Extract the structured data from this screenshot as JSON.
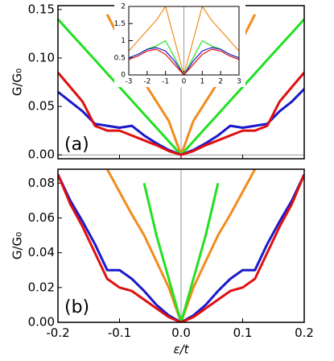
{
  "chart_data": [
    {
      "type": "line",
      "annotation": "(a)",
      "ylabel": "G/G₀",
      "x": [
        -0.2,
        -0.18,
        -0.16,
        -0.14,
        -0.12,
        -0.1,
        -0.08,
        -0.06,
        -0.04,
        -0.02,
        0,
        0.02,
        0.04,
        0.06,
        0.08,
        0.1,
        0.12,
        0.14,
        0.16,
        0.18,
        0.2
      ],
      "series": [
        {
          "color": "#f28c1c",
          "values": [
            null,
            null,
            null,
            null,
            0.145,
            0.12,
            0.095,
            0.075,
            0.055,
            0.035,
            0,
            0.035,
            0.055,
            0.075,
            0.095,
            0.12,
            0.145,
            null,
            null,
            null,
            null
          ]
        },
        {
          "color": "#22e022",
          "values": [
            0.14,
            0.126,
            0.112,
            0.098,
            0.084,
            0.07,
            0.056,
            0.042,
            0.028,
            0.014,
            0,
            0.014,
            0.028,
            0.042,
            0.056,
            0.07,
            0.084,
            0.098,
            0.112,
            0.126,
            0.14
          ]
        },
        {
          "color": "#1a1acc",
          "values": [
            0.065,
            0.055,
            0.045,
            0.032,
            0.03,
            0.028,
            0.03,
            0.02,
            0.012,
            0.005,
            0,
            0.005,
            0.012,
            0.02,
            0.03,
            0.028,
            0.03,
            0.032,
            0.045,
            0.055,
            0.068
          ]
        },
        {
          "color": "#e01010",
          "values": [
            0.085,
            0.07,
            0.055,
            0.03,
            0.025,
            0.025,
            0.02,
            0.015,
            0.01,
            0.004,
            0,
            0.004,
            0.01,
            0.015,
            0.02,
            0.025,
            0.025,
            0.03,
            0.055,
            0.07,
            0.085
          ]
        }
      ],
      "xlim": [
        -0.2,
        0.2
      ],
      "ylim": [
        -0.004,
        0.154
      ],
      "xticks": [
        -0.2,
        -0.1,
        0,
        0.1,
        0.2
      ],
      "yticks": [
        {
          "value": 0,
          "label": "0.00"
        },
        0.05,
        {
          "value": 0.1,
          "label": "0.10"
        },
        0.15
      ]
    },
    {
      "type": "line",
      "x": [
        -3,
        -2.5,
        -2,
        -1.5,
        -1,
        -0.5,
        0,
        0.5,
        1,
        1.5,
        2,
        2.5,
        3
      ],
      "series": [
        {
          "color": "#f28c1c",
          "values": [
            0.7,
            1.0,
            1.3,
            1.6,
            2.0,
            1.0,
            0,
            1.0,
            2.0,
            1.6,
            1.3,
            1.0,
            0.7
          ]
        },
        {
          "color": "#22e022",
          "values": [
            0.5,
            0.6,
            0.75,
            0.85,
            1.0,
            0.5,
            0,
            0.5,
            1.0,
            0.85,
            0.75,
            0.6,
            0.5
          ]
        },
        {
          "color": "#1a1acc",
          "values": [
            0.5,
            0.6,
            0.75,
            0.8,
            0.7,
            0.4,
            0,
            0.4,
            0.7,
            0.8,
            0.75,
            0.6,
            0.5
          ]
        },
        {
          "color": "#e01010",
          "values": [
            0.45,
            0.55,
            0.7,
            0.75,
            0.6,
            0.3,
            0,
            0.3,
            0.6,
            0.75,
            0.7,
            0.55,
            0.45
          ]
        }
      ],
      "xlim": [
        -3,
        3
      ],
      "ylim": [
        0,
        2
      ],
      "xticks": [
        -3,
        -2,
        -1,
        0,
        1,
        2,
        3
      ],
      "yticks": [
        0,
        0.5,
        1,
        1.5,
        2
      ]
    },
    {
      "type": "line",
      "annotation": "(b)",
      "ylabel": "G/G₀",
      "xlabel": "ε/t",
      "x": [
        -0.2,
        -0.18,
        -0.16,
        -0.14,
        -0.12,
        -0.1,
        -0.08,
        -0.06,
        -0.04,
        -0.02,
        0,
        0.02,
        0.04,
        0.06,
        0.08,
        0.1,
        0.12,
        0.14,
        0.16,
        0.18,
        0.2
      ],
      "series": [
        {
          "color": "#f28c1c",
          "values": [
            null,
            null,
            null,
            null,
            0.088,
            0.075,
            0.062,
            0.05,
            0.035,
            0.02,
            0,
            0.02,
            0.035,
            0.05,
            0.062,
            0.075,
            0.088,
            null,
            null,
            null,
            null
          ]
        },
        {
          "color": "#22e022",
          "values": [
            null,
            null,
            null,
            null,
            null,
            null,
            null,
            0.08,
            0.05,
            0.025,
            0,
            0.025,
            0.05,
            0.08,
            null,
            null,
            null,
            null,
            null,
            null,
            null
          ]
        },
        {
          "color": "#1a1acc",
          "values": [
            0.085,
            0.07,
            0.058,
            0.045,
            0.03,
            0.03,
            0.025,
            0.018,
            0.01,
            0.004,
            0,
            0.004,
            0.01,
            0.018,
            0.025,
            0.03,
            0.03,
            0.045,
            0.058,
            0.07,
            0.085
          ]
        },
        {
          "color": "#e01010",
          "values": [
            0.085,
            0.068,
            0.055,
            0.04,
            0.025,
            0.02,
            0.018,
            0.013,
            0.008,
            0.003,
            0,
            0.003,
            0.008,
            0.013,
            0.018,
            0.02,
            0.025,
            0.04,
            0.055,
            0.068,
            0.085
          ]
        }
      ],
      "xlim": [
        -0.2,
        0.2
      ],
      "ylim": [
        0,
        0.088
      ],
      "xticks": [
        -0.2,
        -0.1,
        {
          "value": 0,
          "label": "0.0"
        },
        0.1,
        0.2
      ],
      "yticks": [
        {
          "value": 0,
          "label": "0.00"
        },
        0.02,
        0.04,
        0.06,
        0.08
      ]
    }
  ]
}
